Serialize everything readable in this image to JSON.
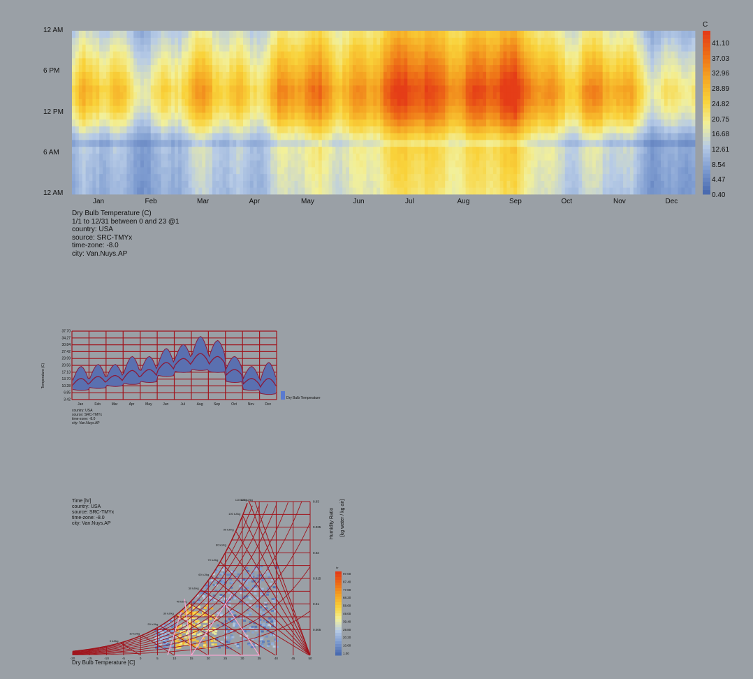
{
  "colors": {
    "background": "#9aa0a6",
    "gradient": [
      "#4a6bb0",
      "#7e9cd0",
      "#b7cbe6",
      "#f2f09a",
      "#f9d23a",
      "#f5a623",
      "#ee6f17",
      "#e53d17"
    ],
    "chart_grid": "#a0141c",
    "band_fill": "#5a70b0"
  },
  "heatmap": {
    "unit": "C",
    "legend_values": [
      "41.10",
      "37.03",
      "32.96",
      "28.89",
      "24.82",
      "20.75",
      "16.68",
      "12.61",
      "8.54",
      "4.47",
      "0.40"
    ],
    "y_labels": [
      "12 AM",
      "6 PM",
      "12 PM",
      "6 AM",
      "12 AM"
    ],
    "month_labels": [
      "Jan",
      "Feb",
      "Mar",
      "Apr",
      "May",
      "Jun",
      "Jul",
      "Aug",
      "Sep",
      "Oct",
      "Nov",
      "Dec"
    ],
    "info": [
      "Dry Bulb Temperature (C)",
      "1/1 to 12/31 between 0 and 23 @1",
      "country: USA",
      "source: SRC-TMYx",
      "time-zone: -8.0",
      "city: Van.Nuys.AP"
    ]
  },
  "line_chart": {
    "y_axis_label": "Temperature (C)",
    "y_ticks": [
      "37.70",
      "34.27",
      "30.84",
      "27.42",
      "23.99",
      "20.56",
      "17.13",
      "13.70",
      "10.28",
      "6.85",
      "3.42"
    ],
    "month_labels": [
      "Jan",
      "Feb",
      "Mar",
      "Apr",
      "May",
      "Jun",
      "Jul",
      "Aug",
      "Sep",
      "Oct",
      "Nov",
      "Dec"
    ],
    "legend_label": "Dry Bulb Temperature",
    "info": [
      "country: USA",
      "source: SRC-TMYx",
      "time-zone: -8.0",
      "city: Van.Nuys.AP"
    ]
  },
  "psychrometric": {
    "info": [
      "Time [hr]",
      "country: USA",
      "source: SRC-TMYx",
      "time-zone: -8.0",
      "city: Van.Nuys.AP"
    ],
    "x_axis_label": "Dry Bulb Temperature [C]",
    "x_ticks": [
      "-20",
      "-15",
      "-10",
      "-5",
      "0",
      "5",
      "10",
      "15",
      "20",
      "25",
      "30",
      "35",
      "40",
      "45",
      "50"
    ],
    "y_axis_label_1": "Humidity Ratio",
    "y_axis_label_2": "[kg water / kg air]",
    "hr_ticks": [
      "0.03",
      "0.025",
      "0.02",
      "0.015",
      "0.01",
      "0.005"
    ],
    "enthalpy_labels": [
      "0 kJ/kg",
      "10 kJ/kg",
      "20 kJ/kg",
      "30 kJ/kg",
      "40 kJ/kg",
      "50 kJ/kg",
      "60 kJ/kg",
      "70 kJ/kg",
      "80 kJ/kg",
      "90 kJ/kg",
      "100 kJ/kg",
      "110 kJ/kg",
      "120 kJ/kg"
    ],
    "legend_unit": "hr",
    "legend_values": [
      "97.00",
      "87.40",
      "77.80",
      "68.20",
      "58.60",
      "49.00",
      "39.40",
      "29.80",
      "20.20",
      "10.60",
      "1.00"
    ]
  },
  "chart_data": [
    {
      "type": "heatmap",
      "title": "Dry Bulb Temperature (C)",
      "x": "day of year (Jan-Dec)",
      "y": "hour of day (12 AM to 12 AM)",
      "value_range": [
        0.4,
        41.1
      ],
      "unit": "C",
      "monthly_afternoon_peak_estimate": [
        20,
        21,
        21,
        25,
        26,
        30,
        33,
        35,
        33,
        28,
        23,
        20
      ],
      "monthly_night_min_estimate": [
        6,
        7,
        8,
        10,
        12,
        15,
        17,
        18,
        16,
        12,
        8,
        6
      ]
    },
    {
      "type": "area",
      "ylabel": "Temperature (C)",
      "ylim": [
        3.42,
        37.7
      ],
      "categories": [
        "Jan",
        "Feb",
        "Mar",
        "Apr",
        "May",
        "Jun",
        "Jul",
        "Aug",
        "Sep",
        "Oct",
        "Nov",
        "Dec"
      ],
      "series": [
        {
          "name": "Dry Bulb Temperature",
          "values_max": [
            20,
            21,
            21,
            25,
            25,
            29,
            31,
            35,
            33,
            25,
            20,
            22
          ],
          "values_avg": [
            13,
            14,
            15,
            17,
            18,
            21,
            24,
            26,
            25,
            19,
            14,
            13
          ],
          "values_min": [
            8,
            9,
            10,
            11,
            12,
            15,
            17,
            18,
            17,
            12,
            8,
            6
          ]
        }
      ]
    },
    {
      "type": "scatter",
      "title": "Psychrometric chart",
      "xlabel": "Dry Bulb Temperature [C]",
      "ylabel": "Humidity Ratio [kg water / kg air]",
      "xlim": [
        -20,
        50
      ],
      "ylim": [
        0,
        0.03
      ],
      "color_range_hr": [
        1.0,
        97.0
      ]
    }
  ]
}
